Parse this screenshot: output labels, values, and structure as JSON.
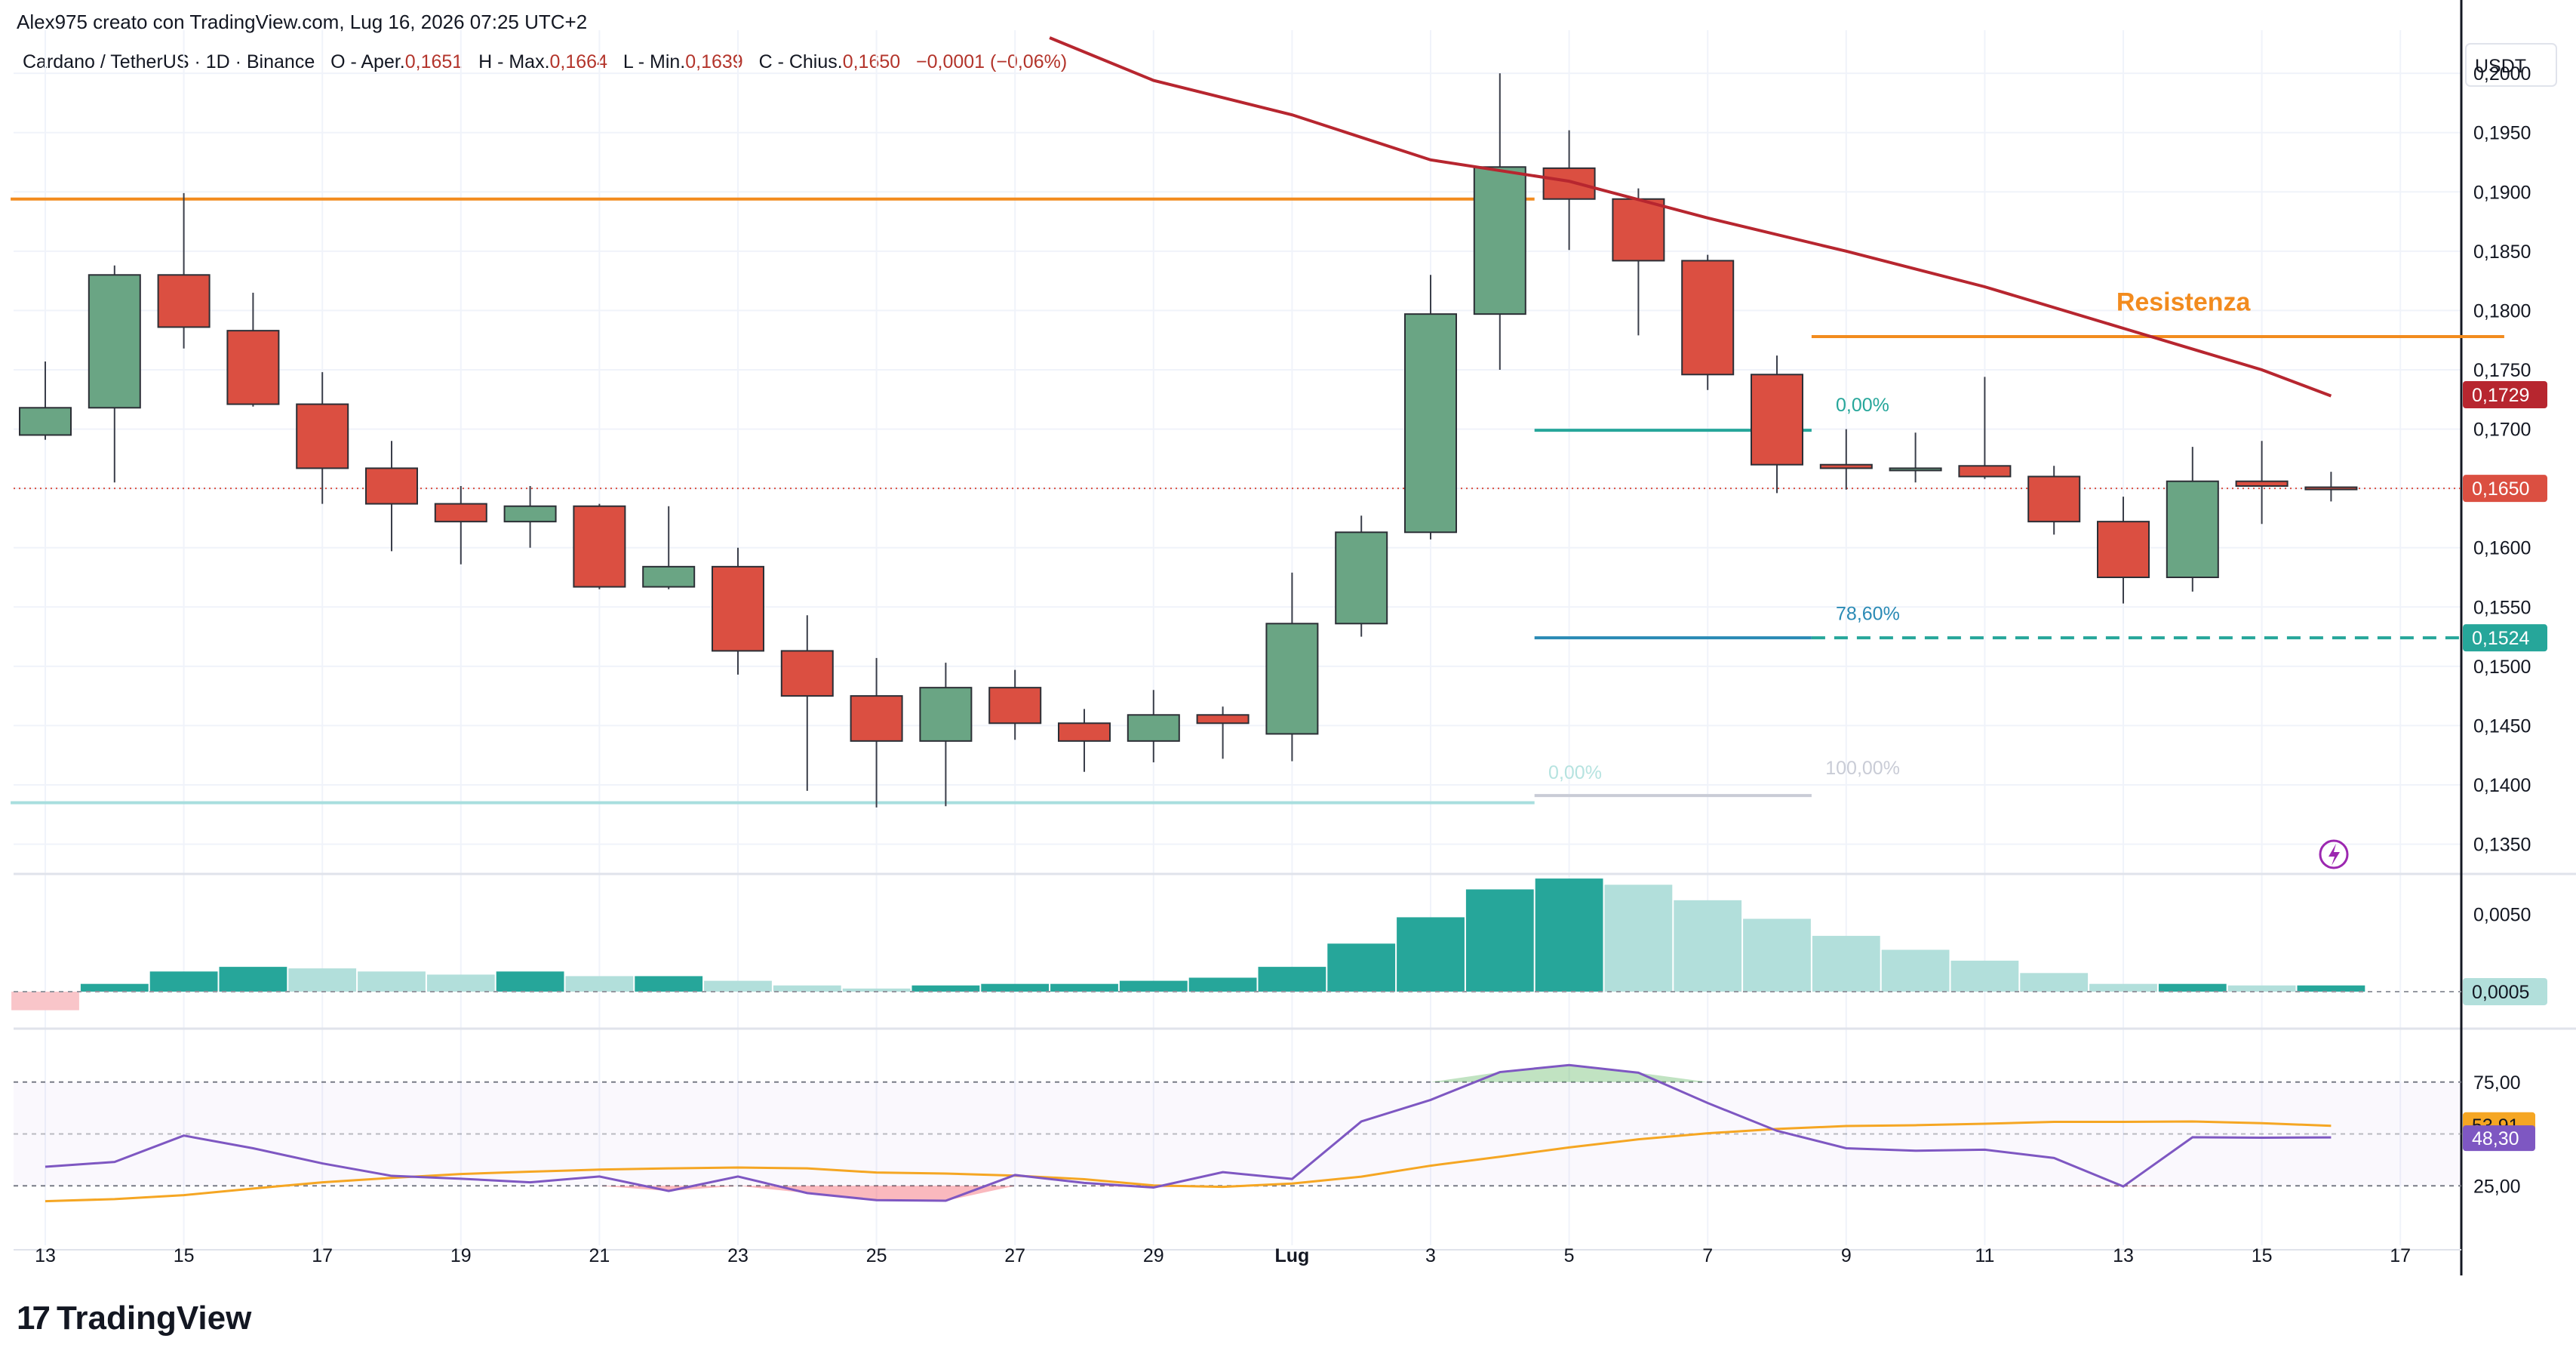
{
  "header": {
    "credit": "Alex975 creato con TradingView.com, Lug 16, 2026 07:25 UTC+2",
    "symbol": "Cardano / TetherUS · 1D · Binance",
    "o_label": "O - Aper.",
    "o_val": "0,1651",
    "h_label": "H - Max.",
    "h_val": "0,1664",
    "l_label": "L - Min.",
    "l_val": "0,1639",
    "c_label": "C - Chius.",
    "c_val": "0,1650",
    "change": "−0,0001 (−0,06%)"
  },
  "footer": {
    "brand": "TradingView",
    "brand_mark": "17"
  },
  "colors": {
    "up": "#6aa584",
    "down": "#db4f41",
    "orange": "#f28b1e",
    "ma": "#b7262f",
    "teal": "#26a69a",
    "hist_up": "#26a69a",
    "hist_up_fade": "#b2dfdb",
    "hist_down_fade": "#f9c5c9",
    "rsi": "#7e57c2",
    "rsi_ma": "#f5a623"
  },
  "chart_data": {
    "type": "candlestick",
    "currency": "USDT",
    "price_ylim": [
      0.133,
      0.203
    ],
    "price_ticks": [
      "0,2000",
      "0,1950",
      "0,1900",
      "0,1850",
      "0,1800",
      "0,1750",
      "0,1700",
      "0,1650",
      "0,1600",
      "0,1550",
      "0,1500",
      "0,1450",
      "0,1400",
      "0,1350"
    ],
    "x_ticks": [
      {
        "label": "13",
        "idx": 0
      },
      {
        "label": "15",
        "idx": 2
      },
      {
        "label": "17",
        "idx": 4
      },
      {
        "label": "19",
        "idx": 6
      },
      {
        "label": "21",
        "idx": 8
      },
      {
        "label": "23",
        "idx": 10
      },
      {
        "label": "25",
        "idx": 12
      },
      {
        "label": "27",
        "idx": 14
      },
      {
        "label": "29",
        "idx": 16
      },
      {
        "label": "Lug",
        "idx": 18
      },
      {
        "label": "3",
        "idx": 20
      },
      {
        "label": "5",
        "idx": 22
      },
      {
        "label": "7",
        "idx": 24
      },
      {
        "label": "9",
        "idx": 26
      },
      {
        "label": "11",
        "idx": 28
      },
      {
        "label": "13",
        "idx": 30
      },
      {
        "label": "15",
        "idx": 32
      },
      {
        "label": "17",
        "idx": 34
      }
    ],
    "candles": [
      {
        "o": 0.1695,
        "h": 0.1757,
        "l": 0.1691,
        "c": 0.1718
      },
      {
        "o": 0.1718,
        "h": 0.1838,
        "l": 0.1655,
        "c": 0.183
      },
      {
        "o": 0.183,
        "h": 0.1899,
        "l": 0.1768,
        "c": 0.1786
      },
      {
        "o": 0.1783,
        "h": 0.1815,
        "l": 0.1719,
        "c": 0.1721
      },
      {
        "o": 0.1721,
        "h": 0.1748,
        "l": 0.1637,
        "c": 0.1667
      },
      {
        "o": 0.1667,
        "h": 0.169,
        "l": 0.1597,
        "c": 0.1637
      },
      {
        "o": 0.1637,
        "h": 0.1652,
        "l": 0.1586,
        "c": 0.1622
      },
      {
        "o": 0.1622,
        "h": 0.1652,
        "l": 0.16,
        "c": 0.1635
      },
      {
        "o": 0.1635,
        "h": 0.1637,
        "l": 0.1565,
        "c": 0.1567
      },
      {
        "o": 0.1567,
        "h": 0.1635,
        "l": 0.1565,
        "c": 0.1584
      },
      {
        "o": 0.1584,
        "h": 0.16,
        "l": 0.1493,
        "c": 0.1513
      },
      {
        "o": 0.1513,
        "h": 0.1543,
        "l": 0.1395,
        "c": 0.1475
      },
      {
        "o": 0.1475,
        "h": 0.1507,
        "l": 0.1381,
        "c": 0.1437
      },
      {
        "o": 0.1437,
        "h": 0.1503,
        "l": 0.1382,
        "c": 0.1482
      },
      {
        "o": 0.1482,
        "h": 0.1497,
        "l": 0.1438,
        "c": 0.1452
      },
      {
        "o": 0.1452,
        "h": 0.1464,
        "l": 0.1411,
        "c": 0.1437
      },
      {
        "o": 0.1437,
        "h": 0.148,
        "l": 0.1419,
        "c": 0.1459
      },
      {
        "o": 0.1459,
        "h": 0.1466,
        "l": 0.1422,
        "c": 0.1452
      },
      {
        "o": 0.1443,
        "h": 0.1579,
        "l": 0.142,
        "c": 0.1536
      },
      {
        "o": 0.1536,
        "h": 0.1627,
        "l": 0.1525,
        "c": 0.1613
      },
      {
        "o": 0.1613,
        "h": 0.183,
        "l": 0.1607,
        "c": 0.1797
      },
      {
        "o": 0.1797,
        "h": 0.2,
        "l": 0.175,
        "c": 0.1921
      },
      {
        "o": 0.192,
        "h": 0.1952,
        "l": 0.1851,
        "c": 0.1894
      },
      {
        "o": 0.1894,
        "h": 0.1903,
        "l": 0.1779,
        "c": 0.1842
      },
      {
        "o": 0.1842,
        "h": 0.1847,
        "l": 0.1733,
        "c": 0.1746
      },
      {
        "o": 0.1746,
        "h": 0.1762,
        "l": 0.1646,
        "c": 0.167
      },
      {
        "o": 0.167,
        "h": 0.17,
        "l": 0.1649,
        "c": 0.1667
      },
      {
        "o": 0.1666,
        "h": 0.1697,
        "l": 0.1655,
        "c": 0.1667
      },
      {
        "o": 0.1669,
        "h": 0.1744,
        "l": 0.1658,
        "c": 0.166
      },
      {
        "o": 0.166,
        "h": 0.1669,
        "l": 0.1611,
        "c": 0.1622
      },
      {
        "o": 0.1622,
        "h": 0.1643,
        "l": 0.1553,
        "c": 0.1575
      },
      {
        "o": 0.1575,
        "h": 0.1685,
        "l": 0.1563,
        "c": 0.1656
      },
      {
        "o": 0.1656,
        "h": 0.169,
        "l": 0.162,
        "c": 0.1652
      },
      {
        "o": 0.1651,
        "h": 0.1664,
        "l": 0.1639,
        "c": 0.165
      }
    ],
    "moving_average": {
      "color": "#b7262f",
      "points": [
        [
          14.5,
          0.203
        ],
        [
          16,
          0.1994
        ],
        [
          18,
          0.1965
        ],
        [
          20,
          0.1927
        ],
        [
          22,
          0.1909
        ],
        [
          24,
          0.1878
        ],
        [
          26,
          0.185
        ],
        [
          28,
          0.182
        ],
        [
          30,
          0.1785
        ],
        [
          32,
          0.175
        ],
        [
          33,
          0.1728
        ]
      ],
      "last_label": "0,1729"
    },
    "horizontal_lines": [
      {
        "name": "resistance-left",
        "y": 0.1894,
        "x0": -0.5,
        "x1": 21.5,
        "color": "#f28b1e"
      },
      {
        "name": "resistance-right",
        "y": 0.1778,
        "x0": 25.5,
        "x1": 35.5,
        "color": "#f28b1e"
      },
      {
        "name": "support-bottom",
        "y": 0.1385,
        "x0": -0.5,
        "x1": 21.5,
        "color": "#a8dede"
      },
      {
        "name": "fib-0-upper",
        "y": 0.1699,
        "x0": 21.5,
        "x1": 25.5,
        "color": "#26a69a"
      },
      {
        "name": "fib-786",
        "y": 0.1524,
        "x0": 21.5,
        "x1": 25.5,
        "color": "#2a8ab5"
      },
      {
        "name": "fib-786-dashed",
        "y": 0.1524,
        "x0": 25.5,
        "x1": 35.5,
        "color": "#26a69a",
        "dashed": true
      },
      {
        "name": "fib-100",
        "y": 0.1391,
        "x0": 21.5,
        "x1": 25.5,
        "color": "#c9ccd6"
      }
    ],
    "annotations": [
      {
        "text": "Resistenza",
        "idx": 29.9,
        "y": 0.18,
        "color": "#f28b1e"
      },
      {
        "text": "0,00%",
        "idx": 25.85,
        "y": 0.1715,
        "color": "#26a69a"
      },
      {
        "text": "78,60%",
        "idx": 25.85,
        "y": 0.1539,
        "color": "#2a8ab5"
      },
      {
        "text": "0,00%",
        "idx": 21.7,
        "y": 0.1405,
        "color": "#b6e3e0"
      },
      {
        "text": "100,00%",
        "idx": 25.7,
        "y": 0.1409,
        "color": "#c9ccd6"
      }
    ],
    "price_labels": {
      "last": "0,1650",
      "ma": "0,1729",
      "fib": "0,1524"
    },
    "macd_hist": {
      "values": [
        -0.0012,
        0.0005,
        0.0013,
        0.0016,
        0.0015,
        0.0013,
        0.0011,
        0.0013,
        0.001,
        0.001,
        0.0007,
        0.0004,
        0.0002,
        0.0004,
        0.0005,
        0.0005,
        0.0007,
        0.0009,
        0.0016,
        0.0031,
        0.0048,
        0.0066,
        0.0073,
        0.0069,
        0.0059,
        0.0047,
        0.0036,
        0.0027,
        0.002,
        0.0012,
        0.0005,
        0.0005,
        0.0004,
        0.0004
      ],
      "ylim": [
        -0.002,
        0.0075
      ],
      "tick": "0,0050",
      "last_label": "0,0005"
    },
    "rsi": {
      "values": [
        34.2,
        36.5,
        49.2,
        43.1,
        35.8,
        29.8,
        28.4,
        26.7,
        29.5,
        22.5,
        29.5,
        21.5,
        18.1,
        17.8,
        30.2,
        26.4,
        24.2,
        31.6,
        28.3,
        56.0,
        66.4,
        79.8,
        83.2,
        79.5,
        64.9,
        51.5,
        43.1,
        41.9,
        42.4,
        38.4,
        24.7,
        48.4,
        48.2,
        48.3
      ],
      "ma_values": [
        17.6,
        18.6,
        20.5,
        23.7,
        26.7,
        28.8,
        30.7,
        31.8,
        32.8,
        33.4,
        33.8,
        33.4,
        31.4,
        30.9,
        29.9,
        28.2,
        25.2,
        24.5,
        26.1,
        29.4,
        34.7,
        39.0,
        43.5,
        47.4,
        50.3,
        52.4,
        53.8,
        54.2,
        54.9,
        55.8,
        55.8,
        56.0,
        55.2,
        53.9
      ],
      "ylim": [
        0,
        100
      ],
      "levels": [
        25,
        50,
        75
      ],
      "ticks": [
        "75,00",
        "25,00"
      ],
      "last_label": "48,30",
      "ma_last_label": "53,91"
    }
  }
}
